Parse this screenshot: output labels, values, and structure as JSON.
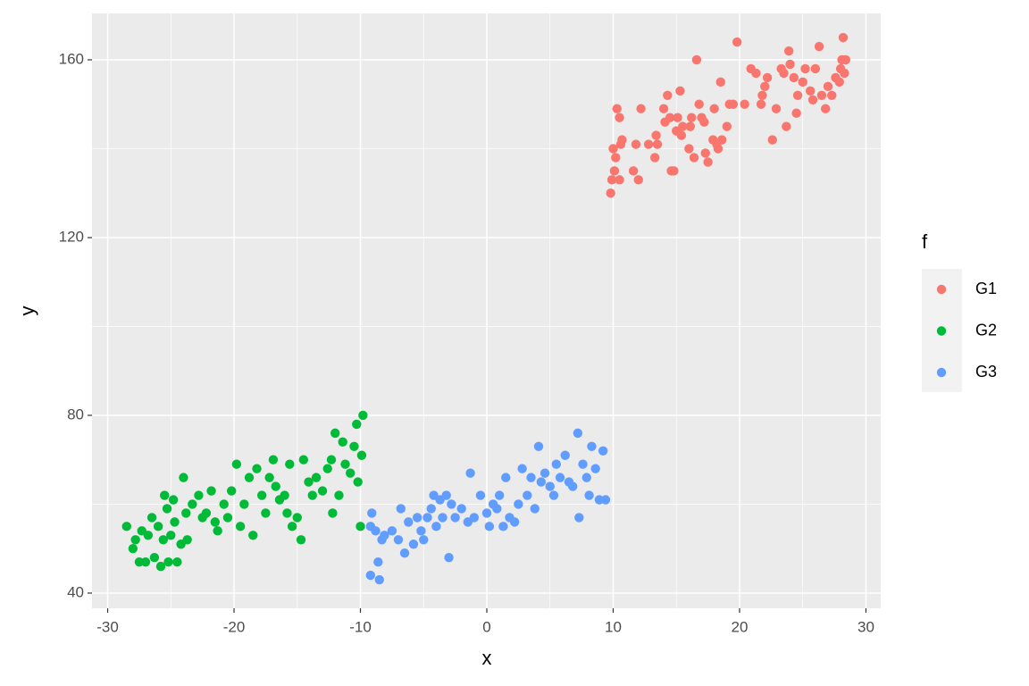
{
  "chart_data": {
    "type": "scatter",
    "x_label": "x",
    "y_label": "y",
    "xlim": [
      -31.24,
      31.17
    ],
    "ylim": [
      36.58,
      170.45
    ],
    "xticks": [
      -30,
      -20,
      -10,
      0,
      10,
      20,
      30
    ],
    "yticks": [
      40,
      80,
      120,
      160
    ],
    "xminorticks": [
      -25,
      -15,
      -5,
      5,
      15,
      25
    ],
    "yminorticks": [
      60,
      100,
      140
    ],
    "grid": true,
    "legend_title": "f",
    "legend_position": "right",
    "series": [
      {
        "name": "G1",
        "color": "#F8766D",
        "x": [
          9.8,
          9.9,
          10.1,
          10.0,
          10.2,
          10.3,
          10.5,
          10.6,
          10.7,
          10.5,
          11.6,
          12.0,
          11.8,
          12.2,
          12.8,
          13.3,
          13.4,
          13.5,
          14.0,
          14.1,
          14.3,
          14.5,
          14.6,
          14.8,
          15.0,
          15.1,
          15.3,
          15.4,
          15.5,
          16.0,
          16.1,
          16.2,
          16.4,
          16.6,
          16.8,
          17.0,
          17.2,
          17.3,
          17.5,
          17.9,
          18.0,
          18.2,
          18.3,
          18.5,
          18.6,
          19.0,
          19.2,
          19.5,
          19.8,
          20.4,
          20.9,
          21.3,
          21.7,
          21.8,
          22.0,
          22.2,
          22.6,
          22.9,
          23.3,
          23.5,
          23.7,
          23.9,
          24.0,
          24.3,
          24.5,
          24.6,
          25.0,
          25.2,
          25.6,
          25.8,
          26.0,
          26.3,
          26.5,
          26.8,
          27.0,
          27.3,
          27.6,
          27.9,
          28.0,
          28.1,
          28.2,
          28.3,
          28.4
        ],
        "values": [
          130,
          133,
          135,
          140,
          138,
          149,
          147,
          141,
          142,
          133,
          135,
          133,
          141,
          149,
          141,
          138,
          143,
          141,
          149,
          146,
          152,
          147,
          135,
          135,
          144,
          147,
          153,
          143,
          145,
          140,
          145,
          147,
          138,
          160,
          150,
          147,
          146,
          139,
          137,
          142,
          149,
          141,
          140,
          155,
          142,
          145,
          150,
          150,
          164,
          150,
          158,
          157,
          150,
          152,
          154,
          156,
          142,
          149,
          158,
          157,
          145,
          162,
          159,
          156,
          148,
          152,
          155,
          158,
          153,
          151,
          158,
          163,
          152,
          149,
          154,
          152,
          156,
          155,
          158,
          160,
          165,
          157,
          160
        ]
      },
      {
        "name": "G2",
        "color": "#00BA38",
        "x": [
          -28.5,
          -28.0,
          -27.8,
          -27.5,
          -27.3,
          -27.0,
          -26.8,
          -26.5,
          -26.3,
          -26.0,
          -25.8,
          -25.6,
          -25.5,
          -25.3,
          -25.2,
          -25.0,
          -24.8,
          -24.7,
          -24.5,
          -24.2,
          -24.0,
          -23.8,
          -23.7,
          -23.3,
          -22.8,
          -22.5,
          -22.2,
          -21.8,
          -21.5,
          -21.3,
          -20.8,
          -20.5,
          -20.2,
          -19.8,
          -19.5,
          -19.2,
          -18.8,
          -18.5,
          -18.2,
          -17.8,
          -17.5,
          -17.2,
          -16.9,
          -16.7,
          -16.4,
          -16.0,
          -15.8,
          -15.6,
          -15.4,
          -15.0,
          -14.7,
          -14.5,
          -14.1,
          -13.8,
          -13.5,
          -13.0,
          -12.6,
          -12.3,
          -12.2,
          -12.0,
          -11.7,
          -11.4,
          -11.2,
          -10.8,
          -10.5,
          -10.3,
          -10.2,
          -10.0,
          -9.9,
          -9.8
        ],
        "values": [
          55,
          50,
          52,
          47,
          54,
          47,
          53,
          57,
          48,
          55,
          46,
          52,
          62,
          59,
          47,
          53,
          61,
          56,
          47,
          51,
          66,
          58,
          52,
          60,
          62,
          57,
          58,
          63,
          56,
          54,
          60,
          57,
          63,
          69,
          55,
          60,
          66,
          53,
          68,
          62,
          58,
          66,
          70,
          64,
          61,
          62,
          58,
          69,
          55,
          57,
          52,
          70,
          65,
          62,
          66,
          63,
          68,
          70,
          58,
          76,
          62,
          74,
          69,
          67,
          73,
          78,
          65,
          55,
          71,
          80
        ]
      },
      {
        "name": "G3",
        "color": "#619CFF",
        "x": [
          -9.2,
          -9.2,
          -9.1,
          -8.8,
          -8.6,
          -8.5,
          -8.3,
          -8.1,
          -7.5,
          -7.0,
          -6.8,
          -6.5,
          -6.2,
          -5.8,
          -5.5,
          -5.2,
          -5.0,
          -4.7,
          -4.4,
          -4.2,
          -4.0,
          -3.7,
          -3.5,
          -3.2,
          -3.0,
          -2.8,
          -2.5,
          -2.0,
          -1.5,
          -1.3,
          -1.0,
          -0.5,
          0.0,
          0.2,
          0.5,
          0.8,
          1.0,
          1.3,
          1.5,
          1.8,
          2.2,
          2.5,
          2.8,
          3.2,
          3.5,
          3.8,
          4.1,
          4.3,
          4.6,
          5.0,
          5.3,
          5.5,
          5.8,
          6.2,
          6.5,
          6.8,
          7.2,
          7.3,
          7.6,
          7.9,
          8.1,
          8.3,
          8.6,
          8.9,
          9.2,
          9.4
        ],
        "values": [
          44,
          55,
          58,
          54,
          47,
          43,
          52,
          53,
          54,
          52,
          59,
          49,
          56,
          51,
          57,
          54,
          52,
          57,
          59,
          62,
          55,
          61,
          57,
          62,
          48,
          60,
          57,
          59,
          56,
          67,
          57,
          62,
          58,
          55,
          60,
          59,
          62,
          55,
          66,
          57,
          56,
          60,
          68,
          62,
          66,
          59,
          73,
          65,
          67,
          64,
          62,
          69,
          66,
          71,
          65,
          64,
          76,
          57,
          69,
          66,
          62,
          73,
          68,
          61,
          72,
          61
        ]
      }
    ]
  }
}
